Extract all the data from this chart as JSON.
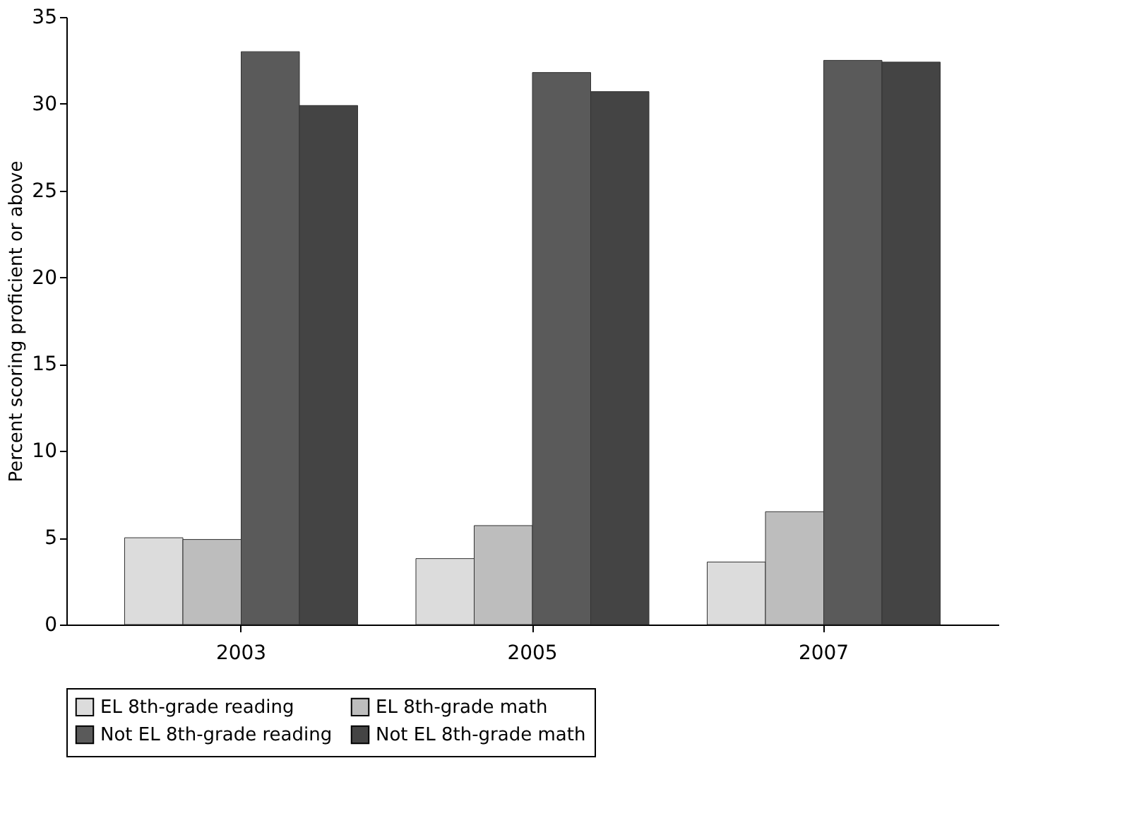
{
  "chart_data": {
    "type": "bar",
    "ylabel": "Percent scoring proficient or above",
    "categories": [
      "2003",
      "2005",
      "2007"
    ],
    "series": [
      {
        "name": "EL 8th-grade reading",
        "color": "#dcdcdc",
        "values": [
          5.0,
          3.8,
          3.6
        ]
      },
      {
        "name": "EL 8th-grade math",
        "color": "#bdbdbd",
        "values": [
          4.9,
          5.7,
          6.5
        ]
      },
      {
        "name": "Not EL 8th-grade reading",
        "color": "#5a5a5a",
        "values": [
          33.0,
          31.8,
          32.5
        ]
      },
      {
        "name": "Not EL 8th-grade math",
        "color": "#444444",
        "values": [
          29.9,
          30.7,
          32.4
        ]
      }
    ],
    "ylim": [
      0,
      35
    ],
    "yticks": [
      0,
      5,
      10,
      15,
      20,
      25,
      30,
      35
    ],
    "grid": false,
    "legend": "bottom"
  }
}
